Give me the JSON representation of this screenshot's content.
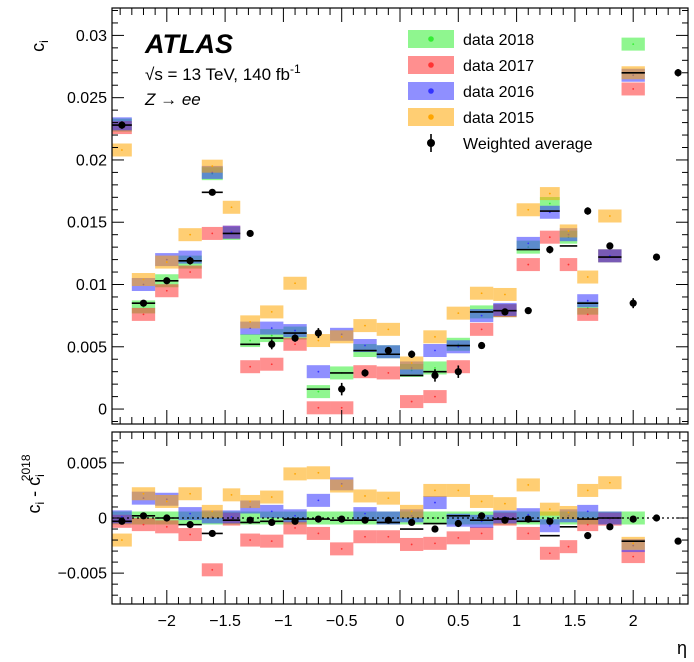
{
  "annotations": {
    "experiment": "ATLAS",
    "energy": "√s = 13 TeV, 140 fb",
    "energy_sup": "-1",
    "process": "Z → ee"
  },
  "colors": {
    "data 2018": "#33ee33",
    "data 2017": "#ff3333",
    "data 2016": "#3333ff",
    "data 2015": "#ffa500",
    "band_opacity": 0.55,
    "average": "#000000"
  },
  "chart_data": [
    {
      "type": "scatter",
      "panel": "top",
      "xlabel": "η",
      "ylabel": "c",
      "ylabel_sub": "i",
      "xlim": [
        -2.47,
        2.47
      ],
      "ylim": [
        -0.0012,
        0.0322
      ],
      "y_ticks": [
        0,
        0.005,
        0.01,
        0.015,
        0.02,
        0.025,
        0.03
      ],
      "y_tick_labels": [
        "0",
        "0.005",
        "0.01",
        "0.015",
        "0.02",
        "0.025",
        "0.03"
      ],
      "bin_edges": [
        -2.47,
        -2.3,
        -2.1,
        -1.9,
        -1.7,
        -1.52,
        -1.37,
        -1.2,
        -1.0,
        -0.8,
        -0.6,
        -0.4,
        -0.2,
        0.0,
        0.2,
        0.4,
        0.6,
        0.8,
        1.0,
        1.2,
        1.37,
        1.52,
        1.7,
        1.9,
        2.1,
        2.3,
        2.47
      ],
      "legend_position": "top-right",
      "series": [
        {
          "name": "data 2018",
          "kind": "band",
          "values": [
            0.0228,
            0.0082,
            0.0103,
            0.0118,
            0.0189,
            0.0141,
            0.0055,
            0.0059,
            0.0061,
            0.0014,
            0.0029,
            0.0047,
            0.0046,
            0.0031,
            0.0033,
            0.0052,
            0.0078,
            0.0079,
            0.013,
            0.0165,
            0.0138,
            0.0081,
            0.0123,
            0.0293
          ]
        },
        {
          "name": "data 2017",
          "kind": "band",
          "values": [
            0.0226,
            0.0076,
            0.0095,
            0.011,
            0.0141,
            0.0142,
            0.0034,
            0.0036,
            0.0052,
            0.0001,
            0.0001,
            0.003,
            0.0029,
            0.0006,
            0.001,
            0.0034,
            0.0064,
            0.0079,
            0.0116,
            0.0138,
            0.0116,
            0.0076,
            0.0123,
            0.0257
          ]
        },
        {
          "name": "data 2016",
          "kind": "band",
          "values": [
            0.0229,
            0.01,
            0.012,
            0.0122,
            0.019,
            0.0142,
            0.0065,
            0.0065,
            0.0063,
            0.003,
            0.006,
            0.0051,
            0.0046,
            0.0033,
            0.0047,
            0.005,
            0.0075,
            0.008,
            0.0133,
            0.0158,
            0.014,
            0.0087,
            0.0123,
            0.0268
          ]
        },
        {
          "name": "data 2015",
          "kind": "band",
          "values": [
            0.0208,
            0.0104,
            0.0118,
            0.014,
            0.0195,
            0.0162,
            0.007,
            0.0078,
            0.0101,
            0.0055,
            0.0058,
            0.0067,
            0.0064,
            0.0037,
            0.0058,
            0.0077,
            0.0093,
            0.0092,
            0.016,
            0.0173,
            0.0143,
            0.0106,
            0.0155,
            0.027
          ]
        },
        {
          "name": "Weighted average",
          "kind": "points",
          "x": [
            -2.385,
            -2.2,
            -2.0,
            -1.8,
            -1.61,
            -1.285,
            -1.1,
            -0.9,
            -0.7,
            -0.5,
            -0.3,
            -0.1,
            0.1,
            0.3,
            0.5,
            0.7,
            0.9,
            1.1,
            1.285,
            1.61,
            1.8,
            2.0,
            2.2,
            2.385
          ],
          "values": [
            0.0228,
            0.0085,
            0.0103,
            0.0119,
            0.0174,
            0.0141,
            0.0052,
            0.0057,
            0.0061,
            0.0016,
            0.0029,
            0.0047,
            0.0044,
            0.0027,
            0.003,
            0.0051,
            0.0078,
            0.0079,
            0.0128,
            0.0159,
            0.0131,
            0.0085,
            0.0122,
            0.027
          ],
          "errors": [
            0.0003,
            0.0002,
            0.0002,
            0.0003,
            0.0002,
            0.0002,
            0.0004,
            0.0003,
            0.0004,
            0.0005,
            0.0003,
            0.0002,
            0.0003,
            0.0005,
            0.0005,
            0.0002,
            0.0002,
            0.0002,
            0.0003,
            0.0003,
            0.0002,
            0.0004,
            0.0001,
            0.0003
          ]
        }
      ]
    },
    {
      "type": "scatter",
      "panel": "bottom",
      "xlabel": "η",
      "ylabel": "c",
      "ylabel_sub": "i",
      "ylabel_rest": " - c",
      "ylabel_rest_sub": "i",
      "ylabel_rest_sup": "2018",
      "xlim": [
        -2.47,
        2.47
      ],
      "ylim": [
        -0.0078,
        0.0078
      ],
      "x_ticks": [
        -2,
        -1.5,
        -1,
        -0.5,
        0,
        0.5,
        1,
        1.5,
        2
      ],
      "x_tick_labels": [
        "−2",
        "−1.5",
        "−1",
        "−0.5",
        "0",
        "0.5",
        "1",
        "1.5",
        "2"
      ],
      "y_ticks": [
        -0.005,
        0,
        0.005
      ],
      "y_tick_labels": [
        "−0.005",
        "0",
        "0.005"
      ],
      "bin_edges": [
        -2.47,
        -2.3,
        -2.1,
        -1.9,
        -1.7,
        -1.52,
        -1.37,
        -1.2,
        -1.0,
        -0.8,
        -0.6,
        -0.4,
        -0.2,
        0.0,
        0.2,
        0.4,
        0.6,
        0.8,
        1.0,
        1.2,
        1.37,
        1.52,
        1.7,
        1.9,
        2.1,
        2.3,
        2.47
      ],
      "series": [
        {
          "name": "data 2018",
          "kind": "band",
          "values": [
            0,
            0,
            0,
            0,
            0,
            0,
            0,
            0,
            0,
            0,
            0,
            0,
            0,
            0,
            0,
            0,
            0,
            0,
            0,
            0,
            0,
            0,
            0,
            0
          ]
        },
        {
          "name": "data 2017",
          "kind": "band",
          "values": [
            -0.0003,
            -0.0006,
            -0.0008,
            -0.0015,
            -0.0047,
            -0.0001,
            -0.002,
            -0.0021,
            -0.0009,
            -0.0014,
            -0.0028,
            -0.0017,
            -0.0017,
            -0.0024,
            -0.0023,
            -0.0018,
            -0.0014,
            -0.0001,
            -0.0014,
            -0.0032,
            -0.0026,
            -0.0006,
            -0.0001,
            -0.0035
          ]
        },
        {
          "name": "data 2016",
          "kind": "band",
          "values": [
            0.0001,
            0.0018,
            0.0017,
            0.0004,
            0.0001,
            0.0001,
            0.001,
            0.0006,
            0.0002,
            0.0016,
            0.0031,
            0.0004,
            0.0,
            0.0002,
            0.0014,
            -0.0002,
            -0.0003,
            0.0001,
            0.0003,
            -0.0007,
            0.0002,
            0.0006,
            0.0,
            -0.0025
          ]
        },
        {
          "name": "data 2015",
          "kind": "band",
          "values": [
            -0.002,
            0.0022,
            0.0015,
            0.0022,
            0.0006,
            0.0021,
            0.0015,
            0.0019,
            0.004,
            0.0041,
            0.0029,
            0.002,
            0.0018,
            0.0006,
            0.0025,
            0.0025,
            0.0015,
            0.0013,
            0.003,
            0.0008,
            0.0005,
            0.0025,
            0.0032,
            -0.0023
          ]
        },
        {
          "name": "Weighted average",
          "kind": "points",
          "x": [
            -2.385,
            -2.2,
            -2.0,
            -1.8,
            -1.61,
            -1.285,
            -1.1,
            -0.9,
            -0.7,
            -0.5,
            -0.3,
            -0.1,
            0.1,
            0.3,
            0.5,
            0.7,
            0.9,
            1.1,
            1.285,
            1.61,
            1.8,
            2.0,
            2.2,
            2.385
          ],
          "values": [
            -0.0003,
            0.0002,
            0.0,
            -0.0006,
            -0.0014,
            -0.0002,
            -0.0004,
            -0.0003,
            -0.0001,
            -0.0001,
            -0.0002,
            -0.0002,
            -0.0004,
            -0.001,
            -0.0005,
            0.0002,
            -0.0002,
            -0.0001,
            -0.0003,
            -0.0016,
            -0.0008,
            -0.0001,
            0.0,
            -0.0021
          ]
        }
      ]
    }
  ]
}
